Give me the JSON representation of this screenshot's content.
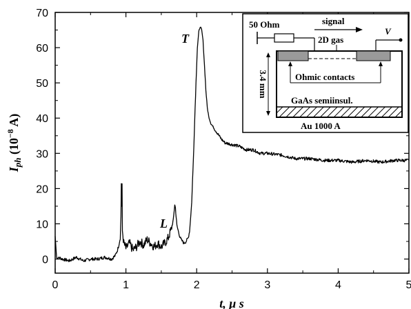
{
  "chart_data": {
    "type": "line",
    "xlabel_main": "t",
    "xlabel_unit": ", μ s",
    "ylabel_main": "I",
    "ylabel_sub": "ph",
    "ylabel_unit_open": " (10",
    "ylabel_exp": "−8",
    "ylabel_unit_close": " A)",
    "xlim": [
      0,
      5
    ],
    "ylim": [
      -4,
      70
    ],
    "xticks": [
      0,
      1,
      2,
      3,
      4,
      5
    ],
    "yticks": [
      0,
      10,
      20,
      30,
      40,
      50,
      60,
      70
    ],
    "grid": false,
    "annotations": [
      {
        "text": "T",
        "x": 1.97,
        "y": 64.3
      },
      {
        "text": "L",
        "x": 1.6,
        "y": 11.2
      }
    ],
    "series": [
      {
        "color": "#000000",
        "x": [
          0.0,
          0.02,
          0.03,
          0.05,
          0.1,
          0.2,
          0.3,
          0.4,
          0.5,
          0.6,
          0.7,
          0.8,
          0.85,
          0.88,
          0.9,
          0.92,
          0.93,
          0.935,
          0.94,
          0.945,
          0.95,
          0.97,
          1.0,
          1.05,
          1.1,
          1.15,
          1.2,
          1.25,
          1.3,
          1.35,
          1.4,
          1.45,
          1.5,
          1.55,
          1.6,
          1.64,
          1.67,
          1.69,
          1.7,
          1.71,
          1.72,
          1.74,
          1.76,
          1.78,
          1.8,
          1.82,
          1.85,
          1.88,
          1.9,
          1.93,
          1.96,
          1.99,
          2.01,
          2.03,
          2.05,
          2.07,
          2.09,
          2.11,
          2.13,
          2.15,
          2.17,
          2.2,
          2.25,
          2.3,
          2.35,
          2.4,
          2.5,
          2.6,
          2.7,
          2.8,
          2.9,
          3.0,
          3.2,
          3.4,
          3.6,
          3.8,
          4.0,
          4.2,
          4.4,
          4.6,
          4.8,
          5.0
        ],
        "y": [
          6.5,
          0.5,
          0.0,
          0.5,
          0.0,
          -0.5,
          0.5,
          -0.5,
          0.0,
          0.0,
          0.5,
          0.0,
          1.0,
          2.5,
          4.0,
          6.0,
          12.0,
          21.5,
          15.0,
          21.0,
          8.0,
          4.5,
          3.0,
          4.5,
          2.5,
          3.5,
          5.0,
          4.0,
          5.5,
          4.5,
          3.5,
          4.5,
          3.5,
          4.5,
          6.0,
          8.5,
          11.0,
          15.5,
          14.5,
          12.0,
          9.5,
          8.0,
          6.5,
          5.5,
          5.0,
          4.5,
          5.0,
          6.0,
          8.0,
          16.0,
          32.0,
          50.0,
          60.0,
          64.5,
          66.0,
          65.0,
          62.0,
          55.0,
          48.0,
          43.0,
          40.5,
          38.5,
          37.0,
          35.5,
          34.0,
          33.0,
          32.5,
          32.0,
          31.0,
          31.0,
          30.0,
          30.0,
          29.5,
          28.5,
          28.5,
          28.0,
          28.0,
          27.5,
          28.0,
          27.5,
          28.0,
          28.0
        ]
      }
    ]
  },
  "inset": {
    "resistor_label": "50 Ohm",
    "signal_label": "signal",
    "gas_label": "2D gas",
    "voltage_label": "V",
    "contacts_label": "Ohmic contacts",
    "thickness_label": "3.4 mm",
    "substrate_label": "GaAs semiinsul.",
    "electrode_label": "Au 1000 A"
  }
}
